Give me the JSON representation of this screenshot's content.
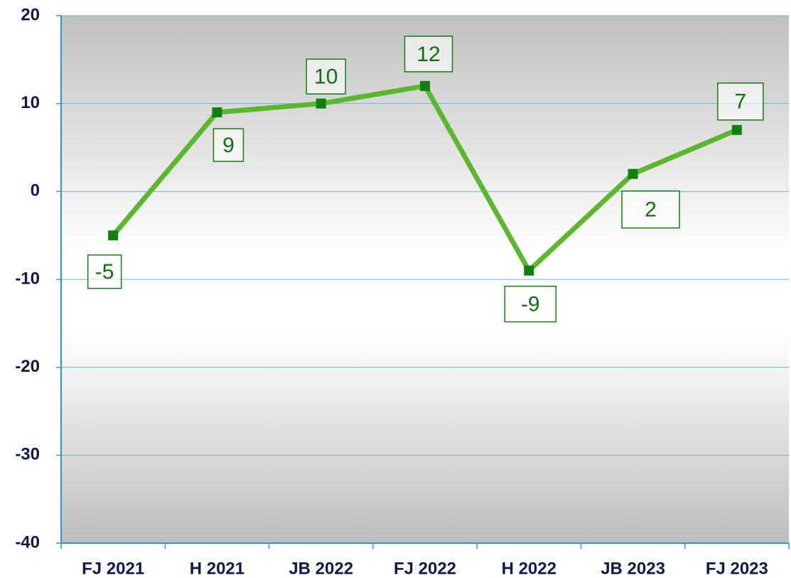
{
  "chart_data": {
    "type": "line",
    "categories": [
      "FJ 2021",
      "H 2021",
      "JB 2022",
      "FJ 2022",
      "H 2022",
      "JB 2023",
      "FJ 2023"
    ],
    "series": [
      {
        "name": "",
        "color": "#5ab82c",
        "marker_color": "#108010",
        "values": [
          -5,
          9,
          10,
          12,
          -9,
          2,
          7
        ]
      }
    ],
    "ylim": [
      -40,
      20
    ],
    "yticks": [
      -40,
      -30,
      -20,
      -10,
      0,
      10,
      20
    ],
    "grid": true
  }
}
